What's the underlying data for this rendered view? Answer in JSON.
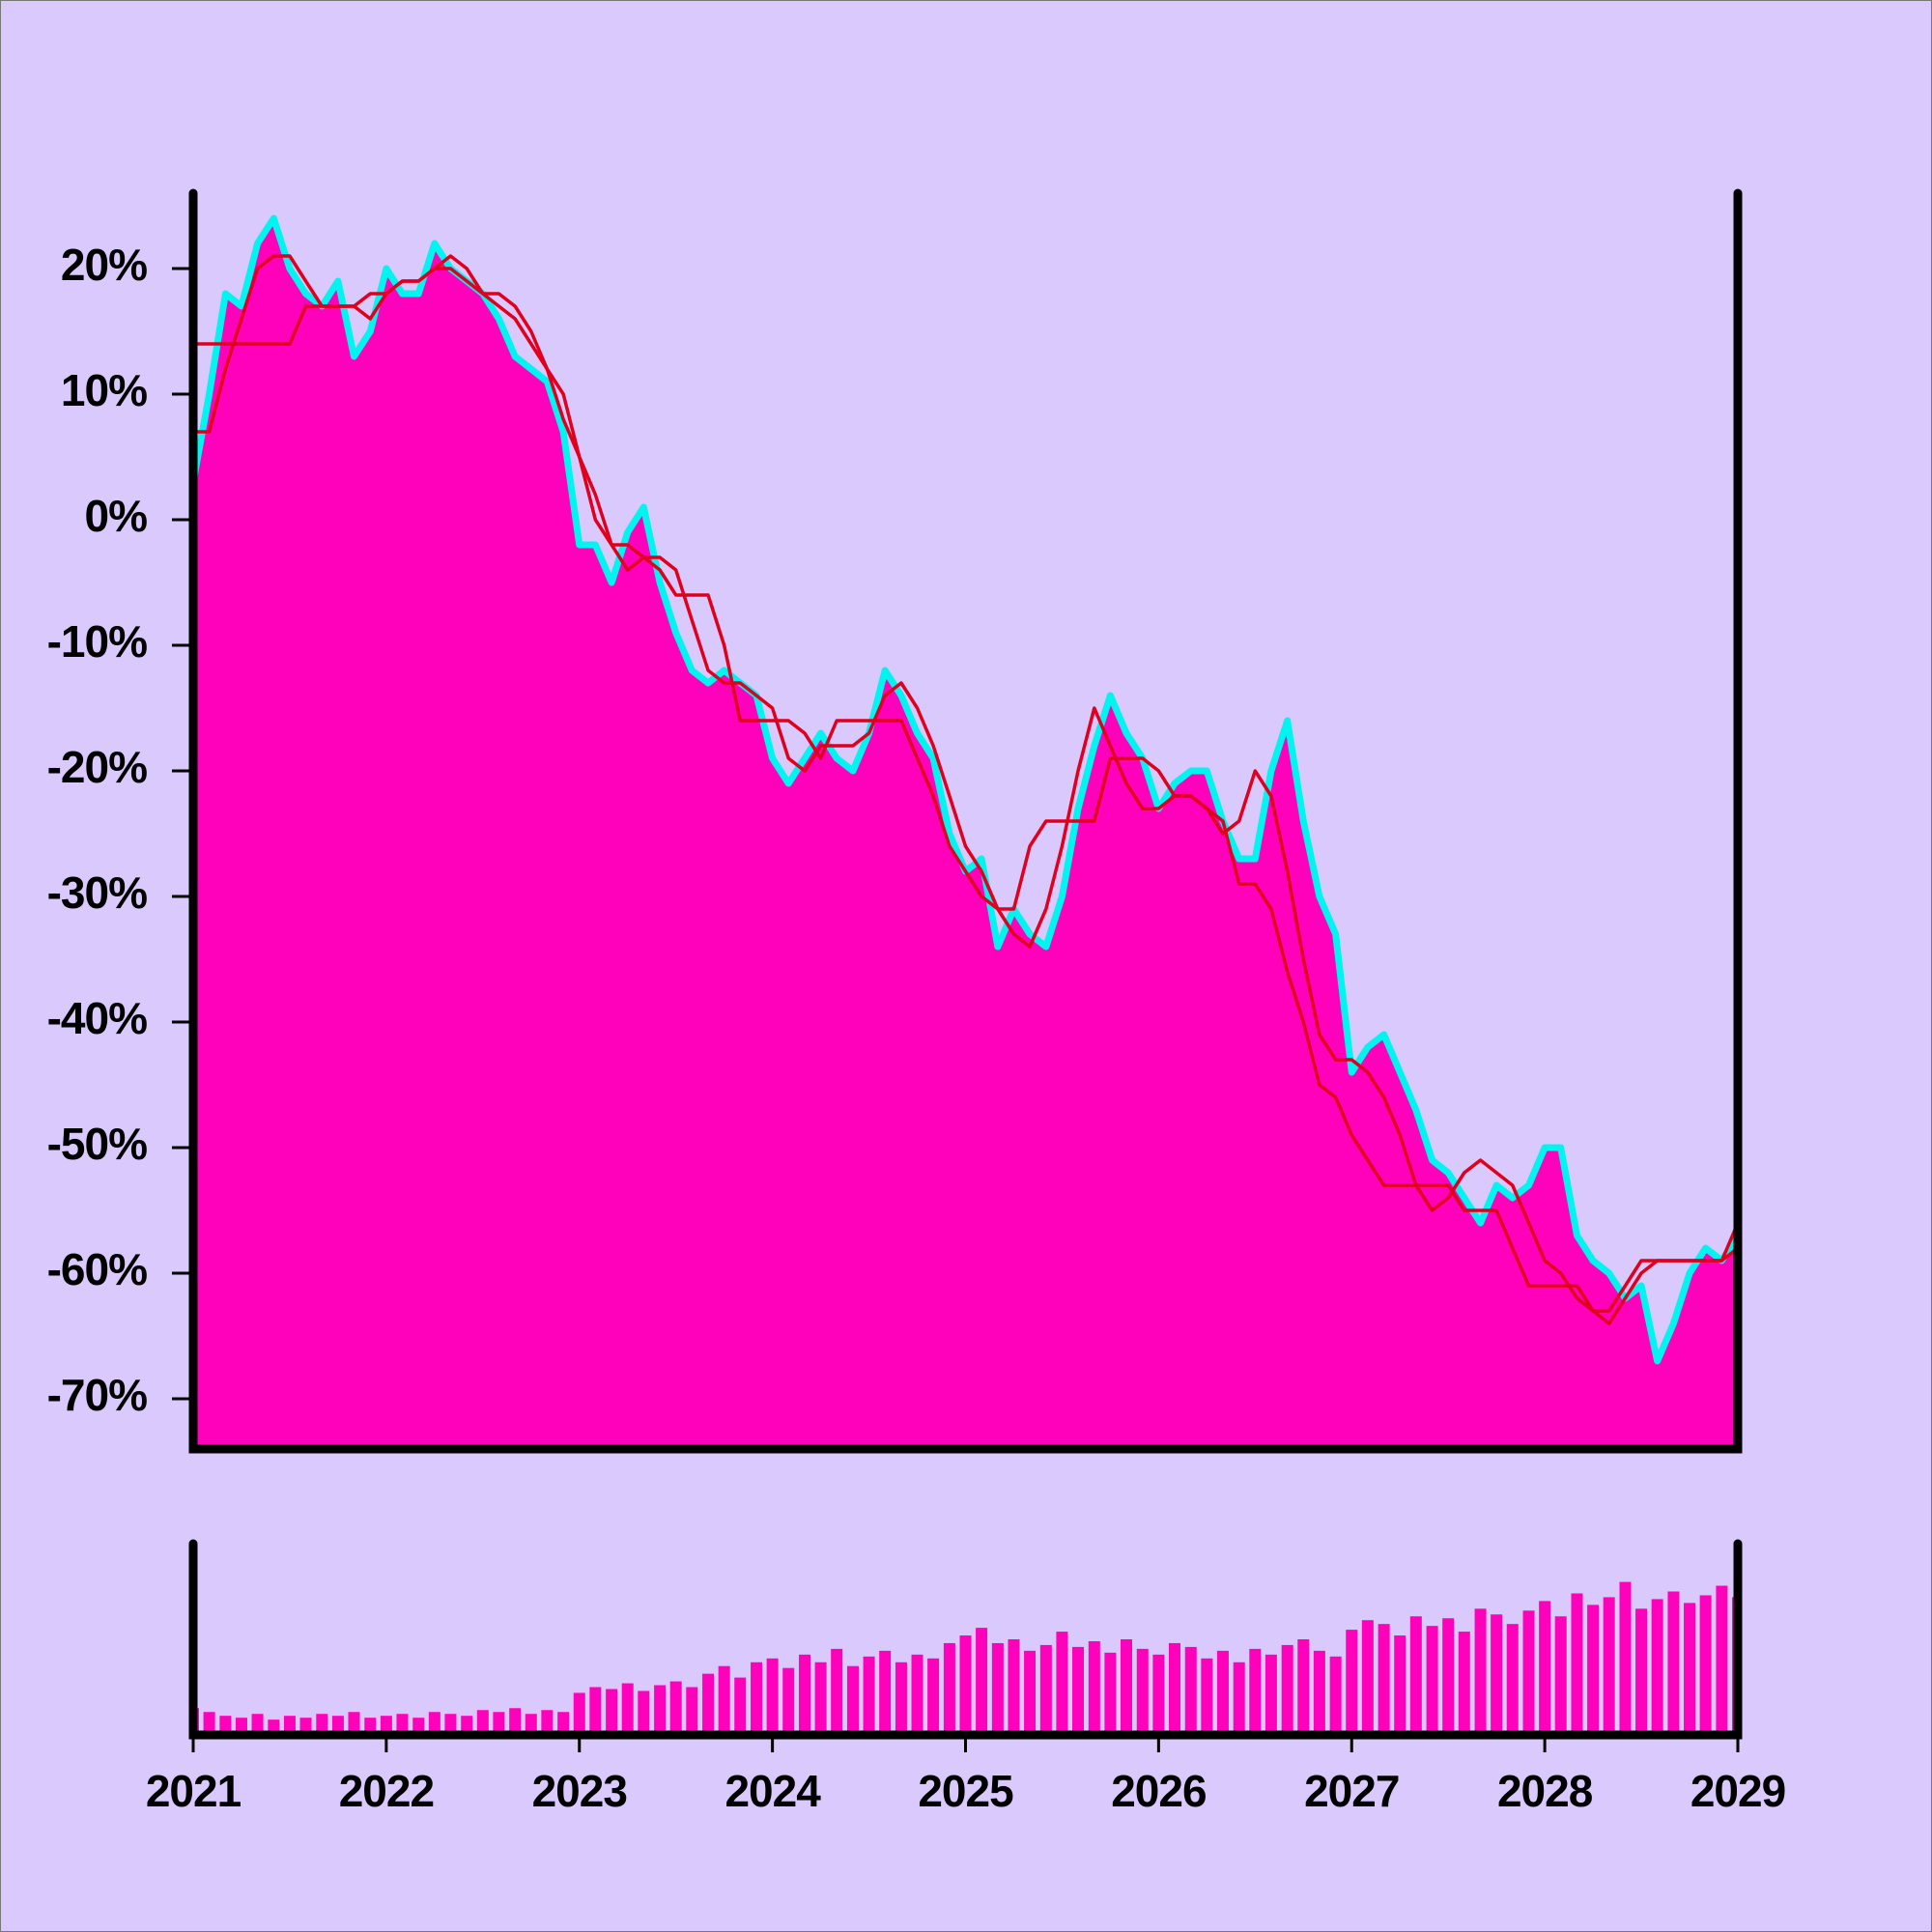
{
  "chart_data": [
    {
      "type": "line",
      "x": [
        2021,
        2021.083,
        2021.167,
        2021.25,
        2021.333,
        2021.417,
        2021.5,
        2021.583,
        2021.667,
        2021.75,
        2021.833,
        2021.917,
        2022,
        2022.083,
        2022.167,
        2022.25,
        2022.333,
        2022.417,
        2022.5,
        2022.583,
        2022.667,
        2022.75,
        2022.833,
        2022.917,
        2023,
        2023.083,
        2023.167,
        2023.25,
        2023.333,
        2023.417,
        2023.5,
        2023.583,
        2023.667,
        2023.75,
        2023.833,
        2023.917,
        2024,
        2024.083,
        2024.167,
        2024.25,
        2024.333,
        2024.417,
        2024.5,
        2024.583,
        2024.667,
        2024.75,
        2024.833,
        2024.917,
        2025,
        2025.083,
        2025.167,
        2025.25,
        2025.333,
        2025.417,
        2025.5,
        2025.583,
        2025.667,
        2025.75,
        2025.833,
        2025.917,
        2026,
        2026.083,
        2026.167,
        2026.25,
        2026.333,
        2026.417,
        2026.5,
        2026.583,
        2026.667,
        2026.75,
        2026.833,
        2026.917,
        2027,
        2027.083,
        2027.167,
        2027.25,
        2027.333,
        2027.417,
        2027.5,
        2027.583,
        2027.667,
        2027.75,
        2027.833,
        2027.917,
        2028,
        2028.083,
        2028.167,
        2028.25,
        2028.333,
        2028.417,
        2028.5,
        2028.583,
        2028.667,
        2028.75,
        2028.833,
        2028.917,
        2029
      ],
      "series": [
        {
          "color": "#00f5f0",
          "fill": "#ff00bb",
          "values": [
            3,
            10,
            18,
            17,
            22,
            24,
            20,
            18,
            17,
            19,
            13,
            15,
            20,
            18,
            18,
            22,
            20,
            19,
            18,
            16,
            13,
            12,
            11,
            7,
            -2,
            -2,
            -5,
            -1,
            1,
            -5,
            -9,
            -12,
            -13,
            -12,
            -13,
            -14,
            -19,
            -21,
            -19,
            -17,
            -19,
            -20,
            -17,
            -12,
            -14,
            -17,
            -19,
            -25,
            -28,
            -27,
            -34,
            -31,
            -33,
            -34,
            -30,
            -23,
            -18,
            -14,
            -17,
            -19,
            -23,
            -21,
            -20,
            -20,
            -24,
            -27,
            -27,
            -20,
            -16,
            -24,
            -30,
            -33,
            -44,
            -42,
            -41,
            -44,
            -47,
            -51,
            -52,
            -54,
            -56,
            -53,
            -54,
            -53,
            -50,
            -50,
            -57,
            -59,
            -60,
            -62,
            -61,
            -67,
            -64,
            -60,
            -58,
            -59,
            -57
          ]
        },
        {
          "color": "#e0001e",
          "values": [
            7,
            7,
            12,
            16,
            20,
            21,
            21,
            19,
            17,
            17,
            17,
            16,
            18,
            19,
            19,
            20,
            21,
            20,
            18,
            17,
            16,
            14,
            12,
            10,
            5,
            0,
            -2,
            -4,
            -3,
            -3,
            -4,
            -8,
            -12,
            -13,
            -13,
            -14,
            -15,
            -19,
            -20,
            -18,
            -18,
            -18,
            -17,
            -14,
            -13,
            -15,
            -18,
            -22,
            -26,
            -28,
            -31,
            -33,
            -34,
            -31,
            -26,
            -20,
            -15,
            -18,
            -21,
            -23,
            -23,
            -22,
            -22,
            -23,
            -25,
            -24,
            -20,
            -22,
            -28,
            -35,
            -41,
            -43,
            -43,
            -44,
            -46,
            -49,
            -53,
            -55,
            -54,
            -52,
            -51,
            -52,
            -53,
            -56,
            -59,
            -60,
            -62,
            -63,
            -64,
            -62,
            -60,
            -59,
            -59,
            -59,
            -59,
            -59,
            -56
          ]
        },
        {
          "color": "#e0001e",
          "values": [
            14,
            14,
            14,
            14,
            14,
            14,
            14,
            17,
            17,
            17,
            17,
            18,
            18,
            19,
            19,
            20,
            20,
            19,
            18,
            18,
            17,
            15,
            12,
            8,
            5,
            2,
            -2,
            -2,
            -3,
            -4,
            -6,
            -6,
            -6,
            -10,
            -16,
            -16,
            -16,
            -16,
            -17,
            -19,
            -16,
            -16,
            -16,
            -16,
            -16,
            -19,
            -22,
            -26,
            -28,
            -30,
            -31,
            -31,
            -26,
            -24,
            -24,
            -24,
            -24,
            -19,
            -19,
            -19,
            -20,
            -22,
            -22,
            -23,
            -24,
            -29,
            -29,
            -31,
            -36,
            -40,
            -45,
            -46,
            -49,
            -51,
            -53,
            -53,
            -53,
            -53,
            -53,
            -55,
            -55,
            -55,
            -58,
            -61,
            -61,
            -61,
            -61,
            -63,
            -63,
            -61,
            -59,
            -59,
            -59,
            -59,
            -59,
            -59,
            -58
          ]
        }
      ],
      "xlim": [
        2021,
        2029
      ],
      "ylim": [
        -74,
        26
      ],
      "yticks": [
        {
          "value": -70,
          "label": "-70%"
        },
        {
          "value": -60,
          "label": "-60%"
        },
        {
          "value": -50,
          "label": "-50%"
        },
        {
          "value": -40,
          "label": "-40%"
        },
        {
          "value": -30,
          "label": "-30%"
        },
        {
          "value": -20,
          "label": "-20%"
        },
        {
          "value": -10,
          "label": "-10%"
        },
        {
          "value": 0,
          "label": "0%"
        },
        {
          "value": 10,
          "label": "10%"
        },
        {
          "value": 20,
          "label": "20%"
        }
      ]
    },
    {
      "type": "bar",
      "x": [
        2021,
        2021.083,
        2021.167,
        2021.25,
        2021.333,
        2021.417,
        2021.5,
        2021.583,
        2021.667,
        2021.75,
        2021.833,
        2021.917,
        2022,
        2022.083,
        2022.167,
        2022.25,
        2022.333,
        2022.417,
        2022.5,
        2022.583,
        2022.667,
        2022.75,
        2022.833,
        2022.917,
        2023,
        2023.083,
        2023.167,
        2023.25,
        2023.333,
        2023.417,
        2023.5,
        2023.583,
        2023.667,
        2023.75,
        2023.833,
        2023.917,
        2024,
        2024.083,
        2024.167,
        2024.25,
        2024.333,
        2024.417,
        2024.5,
        2024.583,
        2024.667,
        2024.75,
        2024.833,
        2024.917,
        2025,
        2025.083,
        2025.167,
        2025.25,
        2025.333,
        2025.417,
        2025.5,
        2025.583,
        2025.667,
        2025.75,
        2025.833,
        2025.917,
        2026,
        2026.083,
        2026.167,
        2026.25,
        2026.333,
        2026.417,
        2026.5,
        2026.583,
        2026.667,
        2026.75,
        2026.833,
        2026.917,
        2027,
        2027.083,
        2027.167,
        2027.25,
        2027.333,
        2027.417,
        2027.5,
        2027.583,
        2027.667,
        2027.75,
        2027.833,
        2027.917,
        2028,
        2028.083,
        2028.167,
        2028.25,
        2028.333,
        2028.417,
        2028.5,
        2028.583,
        2028.667,
        2028.75,
        2028.833,
        2028.917,
        2029
      ],
      "values": [
        14,
        12,
        10,
        9,
        11,
        8,
        10,
        9,
        11,
        10,
        12,
        9,
        10,
        11,
        9,
        12,
        11,
        10,
        13,
        12,
        14,
        11,
        13,
        12,
        22,
        25,
        24,
        27,
        23,
        26,
        28,
        25,
        32,
        36,
        30,
        38,
        40,
        35,
        42,
        38,
        45,
        36,
        41,
        44,
        38,
        42,
        40,
        48,
        52,
        56,
        48,
        50,
        44,
        47,
        54,
        46,
        49,
        43,
        50,
        45,
        42,
        48,
        46,
        40,
        44,
        38,
        45,
        42,
        47,
        50,
        44,
        41,
        55,
        60,
        58,
        52,
        62,
        57,
        61,
        54,
        66,
        63,
        58,
        65,
        70,
        62,
        74,
        68,
        72,
        80,
        66,
        71,
        75,
        69,
        73,
        78,
        72
      ],
      "color": "#ff00bb",
      "xlim": [
        2021,
        2029
      ],
      "ylim": [
        0,
        100
      ],
      "xticks": [
        2021,
        2022,
        2023,
        2024,
        2025,
        2026,
        2027,
        2028,
        2029
      ]
    }
  ]
}
